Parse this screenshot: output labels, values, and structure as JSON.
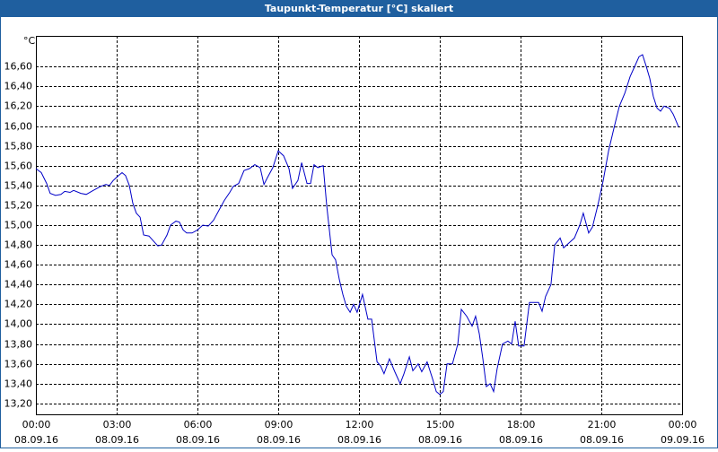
{
  "chart_data": {
    "type": "line",
    "title": "Taupunkt-Temperatur [°C] skaliert",
    "y_label": "°C",
    "color": "#0000c8",
    "grid": true,
    "x": [
      0,
      0.2,
      0.4,
      0.53,
      0.73,
      0.93,
      1.07,
      1.27,
      1.4,
      1.67,
      1.87,
      2.13,
      2.4,
      2.6,
      2.73,
      2.87,
      3.07,
      3.2,
      3.33,
      3.47,
      3.6,
      3.73,
      3.87,
      4.0,
      4.2,
      4.33,
      4.53,
      4.67,
      4.87,
      5.0,
      5.2,
      5.33,
      5.47,
      5.6,
      5.8,
      6.0,
      6.2,
      6.4,
      6.6,
      6.8,
      7.0,
      7.2,
      7.33,
      7.53,
      7.73,
      7.93,
      8.13,
      8.33,
      8.47,
      8.6,
      8.8,
      9.0,
      9.2,
      9.4,
      9.53,
      9.73,
      9.87,
      10.07,
      10.2,
      10.33,
      10.47,
      10.67,
      10.8,
      11.0,
      11.13,
      11.27,
      11.4,
      11.53,
      11.67,
      11.8,
      11.93,
      12.13,
      12.33,
      12.47,
      12.67,
      12.8,
      12.93,
      13.13,
      13.33,
      13.53,
      13.67,
      13.87,
      14.0,
      14.2,
      14.33,
      14.53,
      14.73,
      14.87,
      15.0,
      15.13,
      15.27,
      15.47,
      15.67,
      15.8,
      16.0,
      16.2,
      16.33,
      16.47,
      16.6,
      16.73,
      16.87,
      17.0,
      17.13,
      17.33,
      17.53,
      17.67,
      17.8,
      17.93,
      18.13,
      18.33,
      18.47,
      18.67,
      18.8,
      18.93,
      19.13,
      19.27,
      19.47,
      19.6,
      19.8,
      20.0,
      20.2,
      20.33,
      20.53,
      20.67,
      20.87,
      21.07,
      21.27,
      21.47,
      21.67,
      21.87,
      22.07,
      22.27,
      22.4,
      22.53,
      22.67,
      22.8,
      22.93,
      23.07,
      23.2,
      23.33,
      23.53,
      23.67,
      23.87
    ],
    "values": [
      15.57,
      15.53,
      15.42,
      15.32,
      15.3,
      15.31,
      15.34,
      15.33,
      15.35,
      15.32,
      15.31,
      15.35,
      15.39,
      15.41,
      15.4,
      15.45,
      15.5,
      15.53,
      15.5,
      15.4,
      15.22,
      15.12,
      15.08,
      14.9,
      14.89,
      14.85,
      14.79,
      14.8,
      14.9,
      15.0,
      15.04,
      15.03,
      14.95,
      14.92,
      14.92,
      14.95,
      15.0,
      14.99,
      15.05,
      15.15,
      15.25,
      15.33,
      15.39,
      15.42,
      15.55,
      15.57,
      15.61,
      15.58,
      15.41,
      15.48,
      15.58,
      15.75,
      15.7,
      15.57,
      15.37,
      15.45,
      15.63,
      15.42,
      15.42,
      15.61,
      15.58,
      15.6,
      15.2,
      14.7,
      14.65,
      14.45,
      14.3,
      14.18,
      14.12,
      14.2,
      14.12,
      14.3,
      14.05,
      14.05,
      13.62,
      13.58,
      13.5,
      13.65,
      13.52,
      13.4,
      13.5,
      13.67,
      13.53,
      13.6,
      13.52,
      13.62,
      13.45,
      13.32,
      13.29,
      13.32,
      13.6,
      13.6,
      13.8,
      14.15,
      14.08,
      13.98,
      14.08,
      13.9,
      13.65,
      13.37,
      13.4,
      13.32,
      13.55,
      13.8,
      13.83,
      13.8,
      14.03,
      13.78,
      13.78,
      14.22,
      14.22,
      14.22,
      14.13,
      14.28,
      14.4,
      14.8,
      14.87,
      14.77,
      14.82,
      14.87,
      15.0,
      15.12,
      14.92,
      14.98,
      15.2,
      15.45,
      15.75,
      15.98,
      16.2,
      16.33,
      16.5,
      16.62,
      16.7,
      16.72,
      16.6,
      16.48,
      16.3,
      16.18,
      16.15,
      16.2,
      16.18,
      16.12,
      15.99
    ],
    "xlim": [
      0,
      24
    ],
    "xticks": [
      {
        "value": 0,
        "label": [
          "00:00",
          "08.09.16"
        ]
      },
      {
        "value": 3,
        "label": [
          "03:00",
          "08.09.16"
        ]
      },
      {
        "value": 6,
        "label": [
          "06:00",
          "08.09.16"
        ]
      },
      {
        "value": 9,
        "label": [
          "09:00",
          "08.09.16"
        ]
      },
      {
        "value": 12,
        "label": [
          "12:00",
          "08.09.16"
        ]
      },
      {
        "value": 15,
        "label": [
          "15:00",
          "08.09.16"
        ]
      },
      {
        "value": 18,
        "label": [
          "18:00",
          "08.09.16"
        ]
      },
      {
        "value": 21,
        "label": [
          "21:00",
          "08.09.16"
        ]
      },
      {
        "value": 24,
        "label": [
          "00:00",
          "09.09.16"
        ]
      }
    ],
    "ylim": [
      13.09,
      16.91
    ],
    "yticks": [
      {
        "value": 13.2,
        "label": "13,20"
      },
      {
        "value": 13.4,
        "label": "13,40"
      },
      {
        "value": 13.6,
        "label": "13,60"
      },
      {
        "value": 13.8,
        "label": "13,80"
      },
      {
        "value": 14.0,
        "label": "14,00"
      },
      {
        "value": 14.2,
        "label": "14,20"
      },
      {
        "value": 14.4,
        "label": "14,40"
      },
      {
        "value": 14.6,
        "label": "14,60"
      },
      {
        "value": 14.8,
        "label": "14,80"
      },
      {
        "value": 15.0,
        "label": "15,00"
      },
      {
        "value": 15.2,
        "label": "15,20"
      },
      {
        "value": 15.4,
        "label": "15,40"
      },
      {
        "value": 15.6,
        "label": "15,60"
      },
      {
        "value": 15.8,
        "label": "15,80"
      },
      {
        "value": 16.0,
        "label": "16,00"
      },
      {
        "value": 16.2,
        "label": "16,20"
      },
      {
        "value": 16.4,
        "label": "16,40"
      },
      {
        "value": 16.6,
        "label": "16,60"
      }
    ]
  }
}
